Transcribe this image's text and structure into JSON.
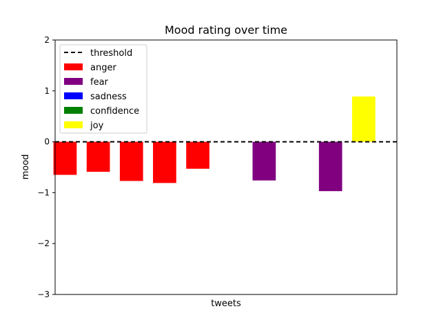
{
  "chart_data": {
    "type": "bar",
    "title": "Mood rating over time",
    "xlabel": "tweets",
    "ylabel": "mood",
    "ylim": [
      -3,
      2
    ],
    "yticks": [
      "2",
      "1",
      "0",
      "−1",
      "−2",
      "−3"
    ],
    "ytick_values": [
      2,
      1,
      0,
      -1,
      -2,
      -3
    ],
    "threshold": {
      "name": "threshold",
      "value": 0,
      "style": "dashed",
      "color": "#000000"
    },
    "legend": {
      "placement": "top-left",
      "items": [
        {
          "name": "threshold",
          "kind": "line",
          "color": "#000000"
        },
        {
          "name": "anger",
          "kind": "patch",
          "color": "#ff0000"
        },
        {
          "name": "fear",
          "kind": "patch",
          "color": "#800080"
        },
        {
          "name": "sadness",
          "kind": "patch",
          "color": "#0000ff"
        },
        {
          "name": "confidence",
          "kind": "patch",
          "color": "#008000"
        },
        {
          "name": "joy",
          "kind": "patch",
          "color": "#ffff00"
        }
      ]
    },
    "bars": [
      {
        "index": 0,
        "value": -0.65,
        "mood": "anger"
      },
      {
        "index": 1,
        "value": -0.59,
        "mood": "anger"
      },
      {
        "index": 2,
        "value": -0.77,
        "mood": "anger"
      },
      {
        "index": 3,
        "value": -0.81,
        "mood": "anger"
      },
      {
        "index": 4,
        "value": -0.53,
        "mood": "anger"
      },
      {
        "index": 6,
        "value": -0.76,
        "mood": "fear"
      },
      {
        "index": 8,
        "value": -0.97,
        "mood": "fear"
      },
      {
        "index": 9,
        "value": 0.89,
        "mood": "joy"
      }
    ],
    "xlim": [
      -0.3,
      10.0
    ],
    "grid": false
  }
}
